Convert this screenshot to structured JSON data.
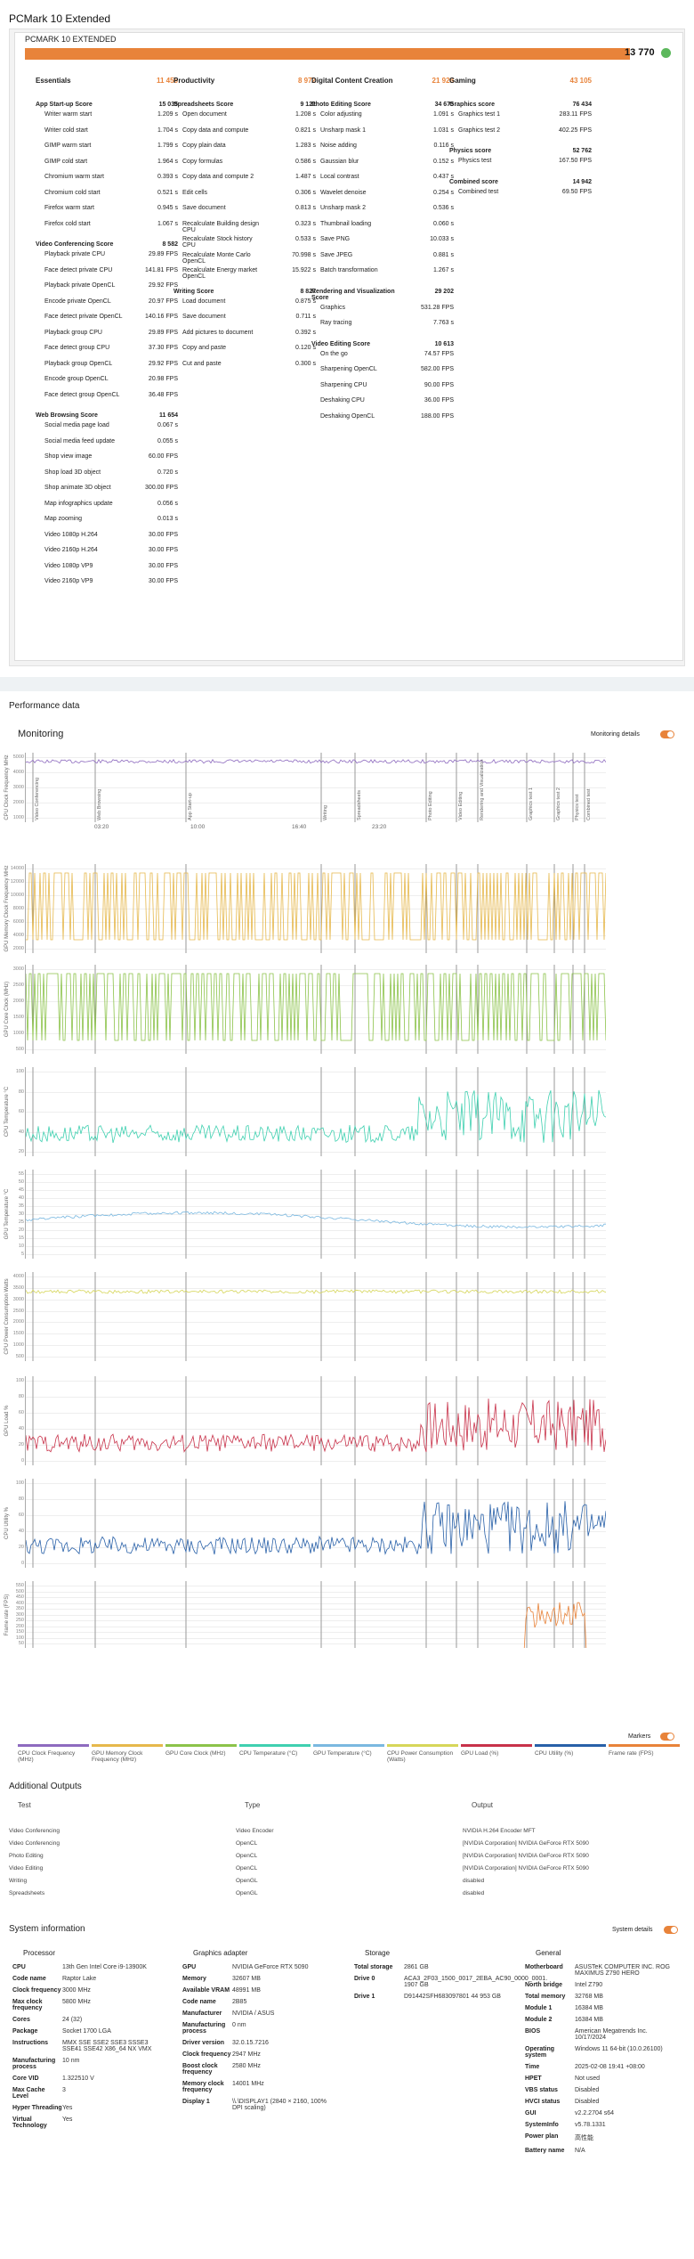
{
  "page_title": "PCMark 10 Extended",
  "card_title": "PCMARK 10 EXTENDED",
  "total_score": "13 770",
  "colors": {
    "accent": "#e8833a",
    "ok": "#5cb85c"
  },
  "columns": [
    {
      "name": "Essentials",
      "score": "11 456",
      "groups": [
        {
          "name": "App Start-up Score",
          "score": "15 035",
          "rows": [
            [
              "Writer warm start",
              "1.209 s"
            ],
            [
              "Writer cold start",
              "1.704 s"
            ],
            [
              "GIMP warm start",
              "1.799 s"
            ],
            [
              "GIMP cold start",
              "1.964 s"
            ],
            [
              "Chromium warm start",
              "0.393 s"
            ],
            [
              "Chromium cold start",
              "0.521 s"
            ],
            [
              "Firefox warm start",
              "0.945 s"
            ],
            [
              "Firefox cold start",
              "1.067 s"
            ]
          ]
        },
        {
          "name": "Video Conferencing Score",
          "score": "8 582",
          "rows": [
            [
              "Playback private CPU",
              "29.89 FPS"
            ],
            [
              "Face detect private CPU",
              "141.81 FPS"
            ],
            [
              "Playback private OpenCL",
              "29.92 FPS"
            ],
            [
              "Encode private OpenCL",
              "20.97 FPS"
            ],
            [
              "Face detect private OpenCL",
              "140.16 FPS"
            ],
            [
              "Playback group CPU",
              "29.89 FPS"
            ],
            [
              "Face detect group CPU",
              "37.30 FPS"
            ],
            [
              "Playback group OpenCL",
              "29.92 FPS"
            ],
            [
              "Encode group OpenCL",
              "20.98 FPS"
            ],
            [
              "Face detect group OpenCL",
              "36.48 FPS"
            ]
          ]
        },
        {
          "name": "Web Browsing Score",
          "score": "11 654",
          "rows": [
            [
              "Social media page load",
              "0.067 s"
            ],
            [
              "Social media feed update",
              "0.055 s"
            ],
            [
              "Shop view image",
              "60.00 FPS"
            ],
            [
              "Shop load 3D object",
              "0.720 s"
            ],
            [
              "Shop animate 3D object",
              "300.00 FPS"
            ],
            [
              "Map infographics update",
              "0.056 s"
            ],
            [
              "Map zooming",
              "0.013 s"
            ],
            [
              "Video 1080p H.264",
              "30.00 FPS"
            ],
            [
              "Video 2160p H.264",
              "30.00 FPS"
            ],
            [
              "Video 1080p VP9",
              "30.00 FPS"
            ],
            [
              "Video 2160p VP9",
              "30.00 FPS"
            ]
          ]
        }
      ]
    },
    {
      "name": "Productivity",
      "score": "8 972",
      "groups": [
        {
          "name": "Spreadsheets Score",
          "score": "9 121",
          "rows": [
            [
              "Open document",
              "1.208 s"
            ],
            [
              "Copy data and compute",
              "0.821 s"
            ],
            [
              "Copy plain data",
              "1.283 s"
            ],
            [
              "Copy formulas",
              "0.586 s"
            ],
            [
              "Copy data and compute 2",
              "1.487 s"
            ],
            [
              "Edit cells",
              "0.306 s"
            ],
            [
              "Save document",
              "0.813 s"
            ],
            [
              "Recalculate Building design CPU",
              "0.323 s"
            ],
            [
              "Recalculate Stock history CPU",
              "0.533 s"
            ],
            [
              "Recalculate Monte Carlo OpenCL",
              "70.998 s"
            ],
            [
              "Recalculate Energy market OpenCL",
              "15.922 s"
            ]
          ]
        },
        {
          "name": "Writing Score",
          "score": "8 827",
          "rows": [
            [
              "Load document",
              "0.875 s"
            ],
            [
              "Save document",
              "0.711 s"
            ],
            [
              "Add pictures to document",
              "0.392 s"
            ],
            [
              "Copy and paste",
              "0.120 s"
            ],
            [
              "Cut and paste",
              "0.300 s"
            ]
          ]
        }
      ]
    },
    {
      "name": "Digital Content Creation",
      "score": "21 928",
      "groups": [
        {
          "name": "Photo Editing Score",
          "score": "34 675",
          "rows": [
            [
              "Color adjusting",
              "1.091 s"
            ],
            [
              "Unsharp mask 1",
              "1.031 s"
            ],
            [
              "Noise adding",
              "0.116 s"
            ],
            [
              "Gaussian blur",
              "0.152 s"
            ],
            [
              "Local contrast",
              "0.437 s"
            ],
            [
              "Wavelet denoise",
              "0.254 s"
            ],
            [
              "Unsharp mask 2",
              "0.536 s"
            ],
            [
              "Thumbnail loading",
              "0.060 s"
            ],
            [
              "Save PNG",
              "10.033 s"
            ],
            [
              "Save JPEG",
              "0.881 s"
            ],
            [
              "Batch transformation",
              "1.267 s"
            ]
          ]
        },
        {
          "name": "Rendering and Visualization Score",
          "score": "29 202",
          "rows": [
            [
              "Graphics",
              "531.28 FPS"
            ],
            [
              "Ray tracing",
              "7.763 s"
            ]
          ]
        },
        {
          "name": "Video Editing Score",
          "score": "10 613",
          "rows": [
            [
              "On the go",
              "74.57 FPS"
            ],
            [
              "Sharpening OpenCL",
              "582.00 FPS"
            ],
            [
              "Sharpening CPU",
              "90.00 FPS"
            ],
            [
              "Deshaking CPU",
              "36.00 FPS"
            ],
            [
              "Deshaking OpenCL",
              "188.00 FPS"
            ]
          ]
        }
      ]
    },
    {
      "name": "Gaming",
      "score": "43 105",
      "groups": [
        {
          "name": "Graphics score",
          "score": "76 434",
          "rows": [
            [
              "Graphics test 1",
              "283.11 FPS"
            ],
            [
              "Graphics test 2",
              "402.25 FPS"
            ]
          ]
        },
        {
          "name": "Physics score",
          "score": "52 762",
          "rows": [
            [
              "Physics test",
              "167.50 FPS"
            ]
          ]
        },
        {
          "name": "Combined score",
          "score": "14 942",
          "rows": [
            [
              "Combined test",
              "69.50 FPS"
            ]
          ]
        }
      ]
    }
  ],
  "performance_title": "Performance data",
  "monitoring_title": "Monitoring",
  "monitoring_details": "Monitoring details",
  "markers_label": "Markers",
  "time_ticks": [
    "03:20",
    "10:00",
    "16:40",
    "23:20"
  ],
  "markers": [
    "Video Conferencing",
    "Web Browsing",
    "App Start-up",
    "Writing",
    "Spreadsheets",
    "Photo Editing",
    "Video Editing",
    "Rendering and Visualization",
    "Graphics test 1",
    "Graphics test 2",
    "Physics test",
    "Combined test"
  ],
  "charts": [
    {
      "label": "CPU Clock Frequency MHz",
      "ticks": [
        "5000",
        "4000",
        "3000",
        "2000",
        "1000"
      ]
    },
    {
      "label": "GPU Memory Clock Frequency MHz",
      "ticks": [
        "14000",
        "12000",
        "10000",
        "8000",
        "6000",
        "4000",
        "2000"
      ]
    },
    {
      "label": "GPU Core Clock (MHz)",
      "ticks": [
        "3000",
        "2500",
        "2000",
        "1500",
        "1000",
        "500"
      ]
    },
    {
      "label": "CPU Temperature °C",
      "ticks": [
        "100",
        "80",
        "60",
        "40",
        "20"
      ]
    },
    {
      "label": "GPU Temperature °C",
      "ticks": [
        "55",
        "50",
        "45",
        "40",
        "35",
        "30",
        "25",
        "20",
        "15",
        "10",
        "5"
      ]
    },
    {
      "label": "CPU Power Consumption Watts",
      "ticks": [
        "4000",
        "3500",
        "3000",
        "2500",
        "2000",
        "1500",
        "1000",
        "500"
      ]
    },
    {
      "label": "GPU Load %",
      "ticks": [
        "100",
        "80",
        "60",
        "40",
        "20",
        "0"
      ]
    },
    {
      "label": "CPU Utility %",
      "ticks": [
        "100",
        "80",
        "60",
        "40",
        "20",
        "0"
      ]
    },
    {
      "label": "Frame rate (FPS)",
      "ticks": [
        "550",
        "500",
        "450",
        "400",
        "350",
        "300",
        "250",
        "200",
        "150",
        "100",
        "50"
      ]
    }
  ],
  "legend": [
    {
      "label": "CPU Clock Frequency (MHz)",
      "color": "#8e6bbf"
    },
    {
      "label": "GPU Memory Clock Frequency (MHz)",
      "color": "#e6b84c"
    },
    {
      "label": "GPU Core Clock (MHz)",
      "color": "#8cc34a"
    },
    {
      "label": "CPU Temperature (°C)",
      "color": "#3fd0b0"
    },
    {
      "label": "GPU Temperature (°C)",
      "color": "#7ab8e0"
    },
    {
      "label": "CPU Power Consumption (Watts)",
      "color": "#d6d65a"
    },
    {
      "label": "GPU Load (%)",
      "color": "#c8324a"
    },
    {
      "label": "CPU Utility (%)",
      "color": "#2860a8"
    },
    {
      "label": "Frame rate (FPS)",
      "color": "#e8833a"
    }
  ],
  "outputs_title": "Additional Outputs",
  "outputs_headers": [
    "Test",
    "Type",
    "Output"
  ],
  "outputs": [
    [
      "Video Conferencing",
      "Video Encoder",
      "NVIDIA H.264 Encoder MFT"
    ],
    [
      "Video Conferencing",
      "OpenCL",
      "[NVIDIA Corporation] NVIDIA GeForce RTX 5090"
    ],
    [
      "Photo Editing",
      "OpenCL",
      "[NVIDIA Corporation] NVIDIA GeForce RTX 5090"
    ],
    [
      "Video Editing",
      "OpenCL",
      "[NVIDIA Corporation] NVIDIA GeForce RTX 5090"
    ],
    [
      "Writing",
      "OpenGL",
      "disabled"
    ],
    [
      "Spreadsheets",
      "OpenGL",
      "disabled"
    ]
  ],
  "system_title": "System information",
  "system_details": "System details",
  "system": [
    {
      "title": "Processor",
      "rows": [
        [
          "CPU",
          "13th Gen Intel Core i9-13900K"
        ],
        [
          "Code name",
          "Raptor Lake"
        ],
        [
          "Clock frequency",
          "3000 MHz"
        ],
        [
          "Max clock frequency",
          "5800 MHz"
        ],
        [
          "Cores",
          "24 (32)"
        ],
        [
          "Package",
          "Socket 1700 LGA"
        ],
        [
          "Instructions",
          "MMX SSE SSE2 SSE3 SSSE3 SSE41 SSE42 X86_64 NX VMX"
        ],
        [
          "Manufacturing process",
          "10 nm"
        ],
        [
          "Core VID",
          "1.322510 V"
        ],
        [
          "Max Cache Level",
          "3"
        ],
        [
          "Hyper Threading",
          "Yes"
        ],
        [
          "Virtual Technology",
          "Yes"
        ]
      ]
    },
    {
      "title": "Graphics adapter",
      "rows": [
        [
          "GPU",
          "NVIDIA GeForce RTX 5090"
        ],
        [
          "Memory",
          "32607 MB"
        ],
        [
          "Available VRAM",
          "48991 MB"
        ],
        [
          "Code name",
          "2B85"
        ],
        [
          "Manufacturer",
          "NVIDIA / ASUS"
        ],
        [
          "Manufacturing process",
          "0 nm"
        ],
        [
          "Driver version",
          "32.0.15.7216"
        ],
        [
          "Clock frequency",
          "2947 MHz"
        ],
        [
          "Boost clock frequency",
          "2580 MHz"
        ],
        [
          "Memory clock frequency",
          "14001 MHz"
        ],
        [
          "Display 1",
          "\\\\.\\DISPLAY1 (2840 × 2160, 100% DPI scaling)"
        ]
      ]
    },
    {
      "title": "Storage",
      "rows": [
        [
          "Total storage",
          "2861 GB"
        ],
        [
          "Drive 0",
          "ACA3_2F03_1500_0017_2EBA_AC90_0000_0001. 1907 GB"
        ],
        [
          "Drive 1",
          "D91442SFH683097801 44 953 GB"
        ]
      ]
    },
    {
      "title": "General",
      "rows": [
        [
          "Motherboard",
          "ASUSTeK COMPUTER INC. ROG MAXIMUS Z790 HERO"
        ],
        [
          "North bridge",
          "Intel Z790"
        ],
        [
          "Total memory",
          "32768 MB"
        ],
        [
          "Module 1",
          "16384 MB"
        ],
        [
          "Module 2",
          "16384 MB"
        ],
        [
          "BIOS",
          "American Megatrends Inc. 10/17/2024"
        ],
        [
          "Operating system",
          "Windows 11 64-bit (10.0.26100)"
        ],
        [
          "Time",
          "2025-02-08 19:41 +08:00"
        ],
        [
          "HPET",
          "Not used"
        ],
        [
          "VBS status",
          "Disabled"
        ],
        [
          "HVCI status",
          "Disabled"
        ],
        [
          "GUI",
          "v2.2.2704 s64"
        ],
        [
          "SystemInfo",
          "v5.78.1331"
        ],
        [
          "Power plan",
          "高性能"
        ],
        [
          "Battery name",
          "N/A"
        ]
      ]
    }
  ]
}
